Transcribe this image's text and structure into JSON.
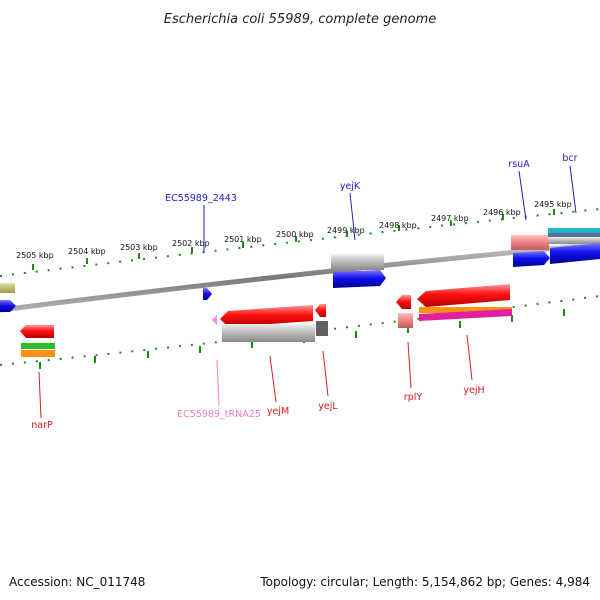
{
  "title": "Escherichia coli 55989, complete genome",
  "accession": "Accession: NC_011748",
  "summary": "Topology: circular; Length: 5,154,862 bp; Genes: 4,984",
  "tick_labels": [
    "2505 kbp",
    "2504 kbp",
    "2503 kbp",
    "2502 kbp",
    "2501 kbp",
    "2500 kbp",
    "2499 kbp",
    "2498 kbp",
    "2497 kbp",
    "2496 kbp",
    "2495 kbp"
  ],
  "top_genes": [
    {
      "label": "EC55989_2443",
      "color": "#1f1fbf"
    },
    {
      "label": "yejK",
      "color": "#1f1fbf"
    },
    {
      "label": "rsuA",
      "color": "#1f1fbf"
    },
    {
      "label": "bcr",
      "color": "#1f1fbf"
    }
  ],
  "bottom_genes": [
    {
      "label": "narP",
      "color": "#d42020"
    },
    {
      "label": "EC55989_tRNA25",
      "color": "#f080c0"
    },
    {
      "label": "yejM",
      "color": "#d42020"
    },
    {
      "label": "yejL",
      "color": "#d42020"
    },
    {
      "label": "rplY",
      "color": "#d42020"
    },
    {
      "label": "yejH",
      "color": "#d42020"
    }
  ],
  "colors": {
    "forward_cds": "#0b0bd8",
    "reverse_cds": "#e00000",
    "rna": "#f090c8",
    "tick": "#1a8a1a",
    "backbone": "#808080"
  }
}
